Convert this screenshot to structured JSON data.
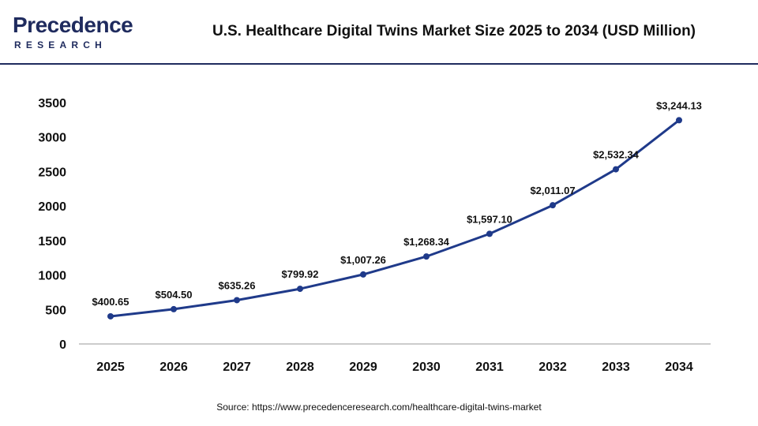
{
  "header": {
    "logo_main": "Precedence",
    "logo_sub": "RESEARCH",
    "title": "U.S. Healthcare Digital Twins Market Size 2025 to 2034 (USD Million)"
  },
  "footer": {
    "source_label": "Source:",
    "source_url": "https://www.precedenceresearch.com/healthcare-digital-twins-market"
  },
  "colors": {
    "line": "#1f3a8a",
    "marker": "#1f3a8a",
    "brand": "#1f2b5e",
    "axis": "#999999"
  },
  "chart_data": {
    "type": "line",
    "title": "U.S. Healthcare Digital Twins Market Size 2025 to 2034 (USD Million)",
    "xlabel": "",
    "ylabel": "",
    "categories": [
      "2025",
      "2026",
      "2027",
      "2028",
      "2029",
      "2030",
      "2031",
      "2032",
      "2033",
      "2034"
    ],
    "values": [
      400.65,
      504.5,
      635.26,
      799.92,
      1007.26,
      1268.34,
      1597.1,
      2011.07,
      2532.34,
      3244.13
    ],
    "data_labels": [
      "$400.65",
      "$504.50",
      "$635.26",
      "$799.92",
      "$1,007.26",
      "$1,268.34",
      "$1,597.10",
      "$2,011.07",
      "$2,532.34",
      "$3,244.13"
    ],
    "yticks": [
      0,
      500,
      1000,
      1500,
      2000,
      2500,
      3000,
      3500
    ],
    "ylim": [
      0,
      3500
    ],
    "grid": false,
    "legend": "none"
  }
}
